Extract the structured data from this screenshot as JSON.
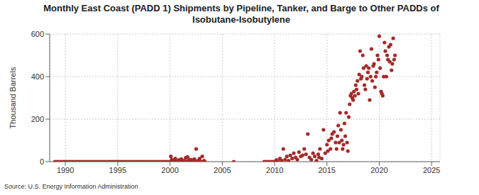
{
  "chart_data": {
    "type": "scatter",
    "title": "Monthly East Coast (PADD 1) Shipments by Pipeline, Tanker, and Barge to Other PADDs of Isobutane-Isobutylene",
    "y_label": "Thousand Barrels",
    "source": "Source: U.S. Energy Information Administration",
    "color": "#a52a2a",
    "marker": "circle",
    "grid": true,
    "xlim": [
      1988.5,
      2025.8
    ],
    "xticks": [
      1990,
      1995,
      2000,
      2005,
      2010,
      2015,
      2020,
      2025
    ],
    "ylim": [
      0,
      600
    ],
    "yticks": [
      0,
      200,
      400,
      600
    ],
    "x": [
      1989,
      1989.17,
      1989.33,
      1989.5,
      1989.67,
      1989.83,
      1990,
      1990.17,
      1990.33,
      1990.5,
      1990.67,
      1990.83,
      1991,
      1991.17,
      1991.33,
      1991.5,
      1991.67,
      1991.83,
      1992,
      1992.17,
      1992.33,
      1992.5,
      1992.67,
      1992.83,
      1993,
      1993.17,
      1993.33,
      1993.5,
      1993.67,
      1993.83,
      1994,
      1994.17,
      1994.33,
      1994.5,
      1994.67,
      1994.83,
      1995,
      1995.17,
      1995.33,
      1995.5,
      1995.67,
      1995.83,
      1996,
      1996.17,
      1996.33,
      1996.5,
      1996.67,
      1996.83,
      1997,
      1997.17,
      1997.33,
      1997.5,
      1997.67,
      1997.83,
      1998,
      1998.17,
      1998.33,
      1998.5,
      1998.67,
      1998.83,
      1999,
      1999.17,
      1999.33,
      1999.5,
      1999.67,
      1999.83,
      2000,
      2000.08,
      2000.17,
      2000.25,
      2000.33,
      2000.42,
      2000.5,
      2000.58,
      2000.67,
      2000.75,
      2000.83,
      2000.92,
      2001,
      2001.08,
      2001.17,
      2001.25,
      2001.33,
      2001.42,
      2001.5,
      2001.58,
      2001.67,
      2001.75,
      2001.83,
      2001.92,
      2002,
      2002.08,
      2002.17,
      2002.25,
      2002.33,
      2002.42,
      2002.5,
      2002.58,
      2002.67,
      2002.75,
      2002.83,
      2002.92,
      2003,
      2003.08,
      2003.17,
      2003.25,
      2003.33,
      2006.1,
      2009,
      2009.17,
      2009.33,
      2009.5,
      2009.67,
      2009.83,
      2010,
      2010.17,
      2010.33,
      2010.5,
      2010.67,
      2010.83,
      2011,
      2011.17,
      2011.33,
      2011.5,
      2011.67,
      2011.83,
      2012,
      2012.17,
      2012.33,
      2012.5,
      2012.67,
      2012.83,
      2013,
      2013.17,
      2013.33,
      2013.5,
      2013.67,
      2013.83,
      2014,
      2014.17,
      2014.25,
      2014.33,
      2014.5,
      2014.67,
      2014.83,
      2015,
      2015.08,
      2015.17,
      2015.33,
      2015.42,
      2015.5,
      2015.67,
      2015.83,
      2015.92,
      2016,
      2016.08,
      2016.17,
      2016.25,
      2016.33,
      2016.42,
      2016.5,
      2016.58,
      2016.67,
      2016.75,
      2016.83,
      2016.92,
      2017,
      2017.08,
      2017.17,
      2017.25,
      2017.33,
      2017.42,
      2017.5,
      2017.58,
      2017.67,
      2017.75,
      2017.83,
      2017.92,
      2018,
      2018.08,
      2018.17,
      2018.25,
      2018.33,
      2018.42,
      2018.5,
      2018.58,
      2018.67,
      2018.75,
      2018.83,
      2018.92,
      2019,
      2019.08,
      2019.17,
      2019.25,
      2019.33,
      2019.42,
      2019.5,
      2019.58,
      2019.67,
      2019.75,
      2019.83,
      2019.92,
      2020,
      2020.08,
      2020.17,
      2020.25,
      2020.33,
      2020.42,
      2020.5,
      2020.58,
      2020.67,
      2020.75,
      2020.83,
      2020.92,
      2021,
      2021.08,
      2021.17,
      2021.25,
      2021.33,
      2021.42,
      2021.5
    ],
    "values": [
      0,
      0,
      0,
      0,
      0,
      0,
      0,
      0,
      0,
      0,
      0,
      0,
      0,
      0,
      0,
      0,
      0,
      0,
      0,
      0,
      0,
      0,
      0,
      0,
      0,
      0,
      0,
      0,
      0,
      0,
      0,
      0,
      0,
      0,
      0,
      0,
      0,
      0,
      0,
      0,
      0,
      0,
      0,
      0,
      0,
      0,
      0,
      0,
      0,
      0,
      0,
      0,
      0,
      0,
      0,
      0,
      0,
      0,
      0,
      0,
      0,
      0,
      0,
      0,
      0,
      0,
      0,
      25,
      10,
      0,
      5,
      0,
      15,
      0,
      3,
      0,
      8,
      0,
      0,
      12,
      2,
      0,
      5,
      0,
      18,
      0,
      22,
      5,
      0,
      10,
      0,
      8,
      0,
      3,
      12,
      0,
      60,
      0,
      5,
      0,
      15,
      0,
      0,
      25,
      0,
      5,
      0,
      0,
      0,
      0,
      0,
      0,
      0,
      0,
      0,
      8,
      0,
      15,
      5,
      60,
      10,
      25,
      5,
      30,
      15,
      40,
      20,
      10,
      45,
      25,
      30,
      60,
      35,
      130,
      20,
      10,
      40,
      25,
      5,
      35,
      20,
      60,
      15,
      150,
      40,
      80,
      50,
      100,
      60,
      110,
      130,
      140,
      90,
      60,
      120,
      170,
      90,
      230,
      150,
      100,
      60,
      80,
      180,
      120,
      230,
      90,
      50,
      210,
      270,
      310,
      320,
      300,
      290,
      330,
      310,
      360,
      340,
      380,
      320,
      410,
      520,
      390,
      400,
      500,
      440,
      360,
      340,
      450,
      390,
      420,
      440,
      290,
      400,
      530,
      380,
      450,
      460,
      350,
      400,
      420,
      500,
      480,
      590,
      440,
      330,
      320,
      310,
      400,
      560,
      520,
      400,
      500,
      480,
      540,
      470,
      550,
      430,
      460,
      580,
      480,
      500
    ]
  }
}
